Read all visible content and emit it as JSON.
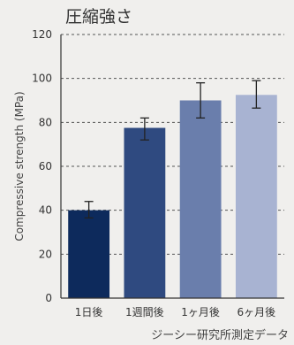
{
  "chart_data": {
    "type": "bar",
    "title": "圧縮強さ",
    "ylabel": "Compressive strength (MPa)",
    "xlabel": "",
    "categories": [
      "1日後",
      "1週間後",
      "1ヶ月後",
      "6ヶ月後"
    ],
    "values": [
      40,
      77.5,
      90,
      92.5
    ],
    "error_low": [
      36.5,
      72,
      82,
      86.5
    ],
    "error_high": [
      44,
      82,
      98,
      99
    ],
    "colors": [
      "#0d2a5c",
      "#2f4a80",
      "#6a7eac",
      "#a8b3d2"
    ],
    "ylim": [
      0,
      120
    ],
    "yticks": [
      0,
      20,
      40,
      60,
      80,
      100,
      120
    ],
    "grid": true,
    "source": "ジーシー研究所測定データ"
  }
}
